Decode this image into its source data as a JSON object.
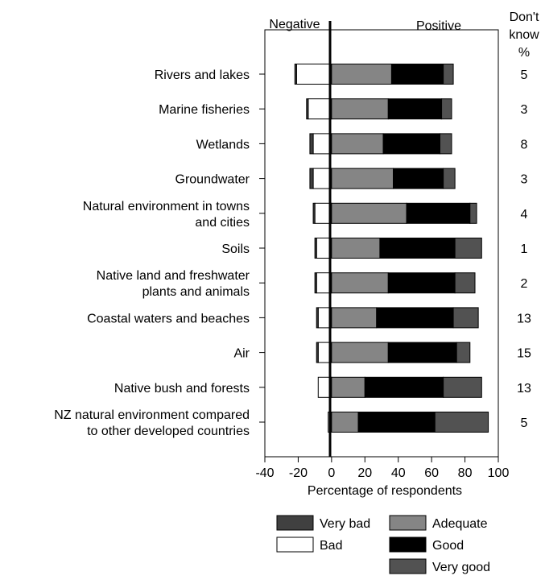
{
  "chart_data": {
    "type": "bar",
    "orientation": "horizontal-diverging",
    "headers": {
      "negative": "Negative",
      "positive": "Positive",
      "dont_know_line1": "Don't",
      "dont_know_line2": "know",
      "dont_know_unit": "%"
    },
    "xlabel": "Percentage of respondents",
    "xlim": [
      -40,
      100
    ],
    "xticks": [
      "-40",
      "-20",
      "0",
      "20",
      "40",
      "60",
      "80",
      "100"
    ],
    "categories": [
      {
        "lines": [
          "Rivers and lakes"
        ],
        "very_bad": 1,
        "bad": 21,
        "adequate": 36,
        "good": 31,
        "very_good": 6,
        "dont_know": "5"
      },
      {
        "lines": [
          "Marine fisheries"
        ],
        "very_bad": 1,
        "bad": 14,
        "adequate": 34,
        "good": 32,
        "very_good": 6,
        "dont_know": "3"
      },
      {
        "lines": [
          "Wetlands"
        ],
        "very_bad": 2,
        "bad": 11,
        "adequate": 31,
        "good": 34,
        "very_good": 7,
        "dont_know": "8"
      },
      {
        "lines": [
          "Groundwater"
        ],
        "very_bad": 2,
        "bad": 11,
        "adequate": 37,
        "good": 30,
        "very_good": 7,
        "dont_know": "3"
      },
      {
        "lines": [
          "Natural environment in towns",
          "and cities"
        ],
        "very_bad": 1,
        "bad": 10,
        "adequate": 45,
        "good": 38,
        "very_good": 4,
        "dont_know": "4"
      },
      {
        "lines": [
          "Soils"
        ],
        "very_bad": 1,
        "bad": 9,
        "adequate": 29,
        "good": 45,
        "very_good": 16,
        "dont_know": "1"
      },
      {
        "lines": [
          "Native land and freshwater",
          "plants and animals"
        ],
        "very_bad": 1,
        "bad": 9,
        "adequate": 34,
        "good": 40,
        "very_good": 12,
        "dont_know": "2"
      },
      {
        "lines": [
          "Coastal waters and beaches"
        ],
        "very_bad": 1,
        "bad": 8,
        "adequate": 27,
        "good": 46,
        "very_good": 15,
        "dont_know": "13"
      },
      {
        "lines": [
          "Air"
        ],
        "very_bad": 1,
        "bad": 8,
        "adequate": 34,
        "good": 41,
        "very_good": 8,
        "dont_know": "15"
      },
      {
        "lines": [
          "Native bush and forests"
        ],
        "very_bad": 0,
        "bad": 8,
        "adequate": 20,
        "good": 47,
        "very_good": 23,
        "dont_know": "13"
      },
      {
        "lines": [
          "NZ natural environment compared",
          "to other developed countries"
        ],
        "very_bad": 0,
        "bad": 2,
        "adequate": 16,
        "good": 46,
        "very_good": 32,
        "dont_know": "5"
      }
    ],
    "legend": [
      {
        "key": "very_bad",
        "label": "Very bad",
        "color": "#404040"
      },
      {
        "key": "bad",
        "label": "Bad",
        "color": "#ffffff"
      },
      {
        "key": "adequate",
        "label": "Adequate",
        "color": "#858585"
      },
      {
        "key": "good",
        "label": "Good",
        "color": "#000000"
      },
      {
        "key": "very_good",
        "label": "Very good",
        "color": "#525252"
      }
    ],
    "legend_placement": "bottom",
    "grid": false
  }
}
